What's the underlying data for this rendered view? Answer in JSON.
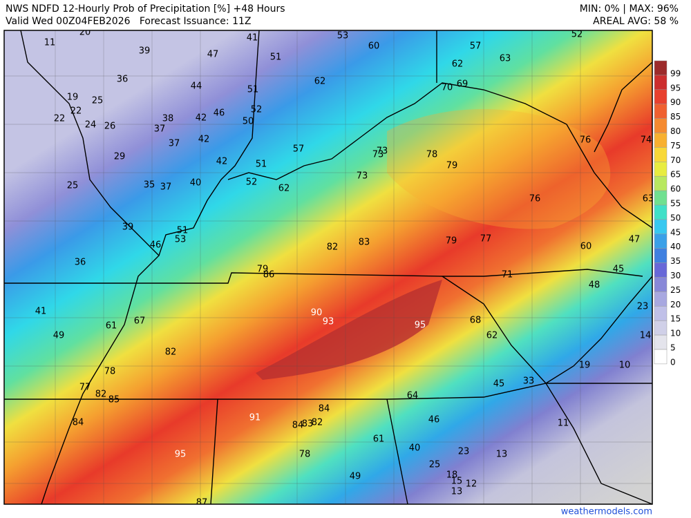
{
  "header": {
    "title": "NWS NDFD 12-Hourly Prob of Precipitation [%] +48 Hours",
    "subtitle": "Valid Wed 00Z04FEB2026   Forecast Issuance: 11Z",
    "minmax": "MIN: 0% | MAX: 96%",
    "areal_avg": "AREAL AVG: 58 %"
  },
  "colorbar": {
    "labels": [
      99,
      95,
      90,
      85,
      80,
      75,
      70,
      65,
      60,
      55,
      50,
      45,
      40,
      35,
      30,
      25,
      20,
      15,
      10,
      5,
      0
    ],
    "colors": [
      "#9c2b2b",
      "#cc2e2e",
      "#e8402e",
      "#f06030",
      "#f58a30",
      "#f8b030",
      "#f8d838",
      "#e8ec40",
      "#b8e860",
      "#70e090",
      "#40e0c8",
      "#38c8f0",
      "#3aa0e8",
      "#4080e0",
      "#6868d8",
      "#8888d8",
      "#a8a8e0",
      "#c0c0e8",
      "#d0d0e8",
      "#e4e4ec",
      "#ffffff"
    ]
  },
  "point_labels": [
    {
      "color": "#000000",
      "values": [
        20,
        11,
        39,
        47,
        41,
        53,
        60,
        57,
        52,
        63,
        51,
        62,
        36,
        44,
        62,
        51,
        70,
        69,
        19,
        25,
        22,
        52,
        46,
        38,
        42,
        50,
        22,
        24,
        26,
        37,
        42,
        57,
        73,
        73,
        78,
        76,
        74,
        29,
        37,
        42,
        51,
        79,
        73,
        52,
        62,
        35,
        37,
        40,
        25,
        76,
        63,
        39,
        51,
        53,
        46,
        82,
        83,
        79,
        77,
        60,
        47,
        36,
        79,
        86,
        71,
        45,
        48,
        41,
        68,
        23,
        61,
        67,
        49,
        62,
        14,
        82,
        19,
        10,
        78,
        45,
        33,
        77,
        82,
        85,
        64,
        84,
        46,
        84,
        84,
        83,
        82,
        11,
        61,
        40,
        23,
        13,
        78,
        25,
        49,
        18,
        15,
        12,
        13,
        87
      ]
    },
    {
      "color": "#ffffff",
      "values": [
        90,
        93,
        95,
        91,
        95
      ]
    }
  ],
  "footer": {
    "credit": "weathermodels.com"
  }
}
